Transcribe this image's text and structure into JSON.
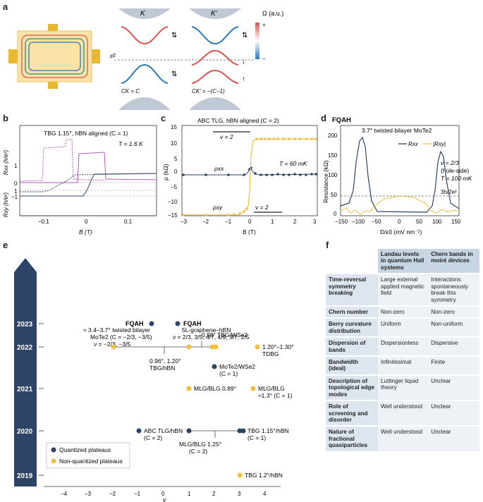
{
  "panels": {
    "a": "a",
    "b": "b",
    "c": "c",
    "d": "d",
    "e": "e",
    "f": "f"
  },
  "a": {
    "K": "K",
    "Kp": "K′",
    "omega_label": "Ω (a.u.)",
    "plus": "+",
    "minus": "−",
    "eF": "εF",
    "cK": "CK = C",
    "cKp": "CK′ = −(C−1)"
  },
  "b": {
    "title": "TBG 1.15°, hBN aligned (C = 1)",
    "temp": "T = 1.6 K",
    "ylabel_top": "Rxx (h/e²)",
    "ylabel_bot": "Rxy (h/e²)",
    "xlabel": "B (T)",
    "yticks_top": [
      "1",
      "0"
    ],
    "yticks_bot": [
      "1",
      "0",
      "−1"
    ],
    "xticks": [
      "−0.1",
      "0",
      "0.1"
    ]
  },
  "c": {
    "title": "ABC TLG, hBN aligned (C = 2)",
    "temp": "T = 60 mK",
    "ylabel": "ρ (kΩ)",
    "xlabel": "B (T)",
    "nu_top": "ν = 2",
    "nu_bot": "ν = 2",
    "rho_xx": "ρxx",
    "rho_xy": "ρxy",
    "yticks": [
      "15",
      "10",
      "5",
      "0",
      "−5",
      "−10",
      "−15"
    ],
    "xticks": [
      "−3",
      "−2",
      "−1",
      "0",
      "1",
      "2",
      "3"
    ]
  },
  "d": {
    "label": "FQAH",
    "title": "3.7° twisted bilayer MoTe2",
    "legend_rxx": "Rxx",
    "legend_rxy": "|Rxy|",
    "ylabel": "Resistance (kΩ)",
    "xlabel": "D/ε0 (mV nm⁻¹)",
    "nu": "ν = 2/3",
    "hole": "(hole-side)",
    "temp": "T = 100 mK",
    "quant": "3h/2e²",
    "yticks": [
      "200",
      "150",
      "100",
      "50",
      "0"
    ],
    "xticks": [
      "−150",
      "−100",
      "−50",
      "0",
      "50",
      "100",
      "150"
    ]
  },
  "e": {
    "years": [
      "2023",
      "2022",
      "2021",
      "2020",
      "2019"
    ],
    "xlabel": "ν",
    "xticks": [
      "−4",
      "−3",
      "−2",
      "−1",
      "0",
      "1",
      "2",
      "3",
      "4"
    ],
    "legend_q": "Quantized plateaus",
    "legend_nq": "Non-quantized plateaus",
    "labels": {
      "fqah1": "FQAH",
      "fqah1_a": "≈ 3.4–3.7° twisted bilayer",
      "fqah1_b": "MoTe2 (C = −2/3, −3/5)",
      "fqah1_c": "ν = −2/3, −3/5",
      "fqah2": "FQAH",
      "fqah2_a": "5L-graphene–hBN",
      "fqah2_b": "ν = 2/3, 3/5, 4/7, 4/9, 3/7, 2/5",
      "tbgwse2": "0.98° TBG/WSe2",
      "tdbg_a": "1.20°–1.30°",
      "tdbg_b": "TDBG",
      "tbghbn_a": "0.96°, 1.20°",
      "tbghbn_b": "TBG/hBN",
      "mote2_a": "MoTe2/WSe2",
      "mote2_b": "(C = 1)",
      "mlg1": "MLG/BLG 0.89°",
      "mlg2_a": "MLG/BLG",
      "mlg2_b": "≈1.3° (C = 1)",
      "abc_a": "ABC TLG/hBN",
      "abc_b": "(C = 2)",
      "tbg115_a": "TBG 1.15°/hBN",
      "tbg115_b": "(C = 1)",
      "mlg125_a": "MLG/BLG 1.25°",
      "mlg125_b": "(C = 2)",
      "tbg12": "TBG 1.2°/hBN"
    }
  },
  "f": {
    "headers": [
      "Landau levels in quantum Hall systems",
      "Chern bands in moiré devices"
    ],
    "rows": [
      {
        "label": "Time-reversal symmetry breaking",
        "ll": "Large external applied magnetic field",
        "cb": "Interactions spontaneously break this symmetry"
      },
      {
        "label": "Chern number",
        "ll": "Non-zero",
        "cb": "Non-zero"
      },
      {
        "label": "Berry curvature distribution",
        "ll": "Uniform",
        "cb": "Non-uniform"
      },
      {
        "label": "Dispersion of bands",
        "ll": "Dispersionless",
        "cb": "Dispersive"
      },
      {
        "label": "Bandwidth (ideal)",
        "ll": "Infinitesimal",
        "cb": "Finite"
      },
      {
        "label": "Description of topological edge modes",
        "ll": "Luttinger liquid theory",
        "cb": "Unclear"
      },
      {
        "label": "Role of screening and disorder",
        "ll": "Well understood",
        "cb": "Unclear"
      },
      {
        "label": "Nature of fractional quasiparticles",
        "ll": "Well understood",
        "cb": "Unclear"
      }
    ]
  },
  "colors": {
    "navy": "#2e4466",
    "gold": "#f0c040",
    "magenta": "#b05ab8",
    "red": "#d9534f",
    "blue": "#2a7ab8",
    "device": "#fbe3a8",
    "pad": "#e8b830"
  }
}
